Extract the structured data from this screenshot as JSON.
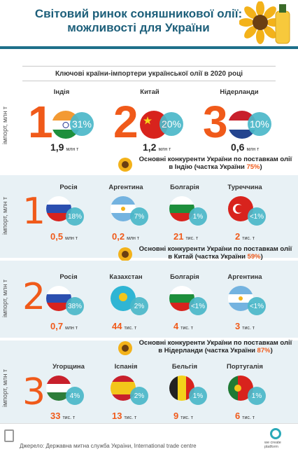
{
  "header": {
    "title": "Світовий ринок соняшникової олії: можливості для України"
  },
  "subtitle": "Ключові країни-імпортери української олії в 2020 році",
  "side_label": "імпорт, млн т",
  "top": {
    "items": [
      {
        "rank": "1",
        "country": "Індія",
        "share": "31%",
        "amount": "1,9",
        "unit": "млн т"
      },
      {
        "rank": "2",
        "country": "Китай",
        "share": "20%",
        "amount": "1,2",
        "unit": "млн т"
      },
      {
        "rank": "3",
        "country": "Нідерланди",
        "share": "10%",
        "amount": "0,6",
        "unit": "млн т"
      }
    ]
  },
  "india": {
    "heading_pre": "Основні конкуренти України по поставкам олії в Індію (частка України ",
    "heading_share": "75%",
    "heading_post": ")",
    "rank": "1",
    "items": [
      {
        "country": "Росія",
        "share": "18%",
        "amount": "0,5",
        "unit": "млн т"
      },
      {
        "country": "Аргентина",
        "share": "7%",
        "amount": "0,2",
        "unit": "млн т"
      },
      {
        "country": "Болгарія",
        "share": "1%",
        "amount": "21",
        "unit": "тис. т"
      },
      {
        "country": "Туреччина",
        "share": "<1%",
        "amount": "2",
        "unit": "тис. т"
      }
    ]
  },
  "china": {
    "heading_pre": "Основні конкуренти України по поставкам олії в Китай (частка України ",
    "heading_share": "59%",
    "heading_post": ")",
    "rank": "2",
    "items": [
      {
        "country": "Росія",
        "share": "38%",
        "amount": "0,7",
        "unit": "млн т"
      },
      {
        "country": "Казахстан",
        "share": "2%",
        "amount": "44",
        "unit": "тис. т"
      },
      {
        "country": "Болгарія",
        "share": "<1%",
        "amount": "4",
        "unit": "тис. т"
      },
      {
        "country": "Аргентина",
        "share": "<1%",
        "amount": "3",
        "unit": "тис. т"
      }
    ]
  },
  "nl": {
    "heading_pre": "Основні конкуренти України по поставкам олії в Нідерланди (частка України ",
    "heading_share": "87%",
    "heading_post": ")",
    "rank": "3",
    "items": [
      {
        "country": "Угорщина",
        "share": "4%",
        "amount": "33",
        "unit": "тис. т"
      },
      {
        "country": "Іспанія",
        "share": "2%",
        "amount": "13",
        "unit": "тис. т"
      },
      {
        "country": "Бельгія",
        "share": "1%",
        "amount": "9",
        "unit": "тис. т"
      },
      {
        "country": "Португалія",
        "share": "1%",
        "amount": "6",
        "unit": "тис. т"
      }
    ]
  },
  "footer": {
    "source": "Джерело: Державна митна служба України, International trade centre",
    "logo": "we create platform"
  },
  "colors": {
    "accent": "#f05a1a",
    "teal": "#1e6f8a",
    "bubble": "#4bb8c9",
    "band": "#e8f1f5"
  }
}
